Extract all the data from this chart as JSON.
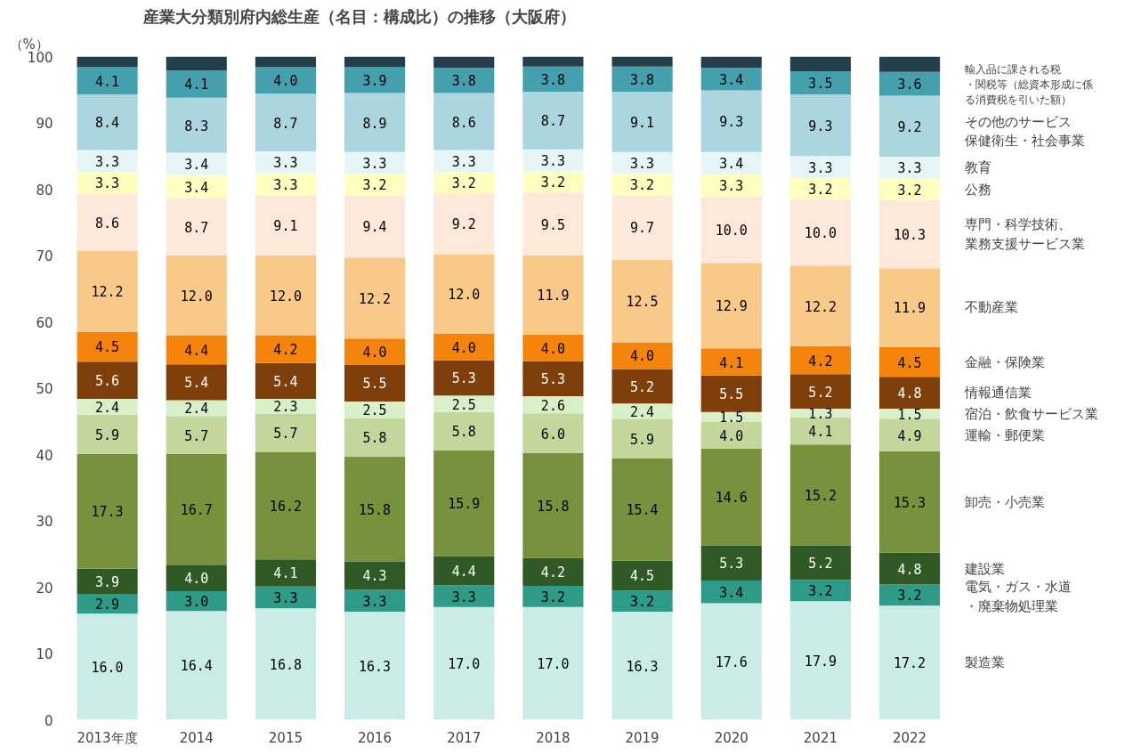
{
  "chart_data": {
    "type": "bar",
    "stacked": true,
    "title": "産業大分類別府内総生産（名目：構成比）の推移（大阪府）",
    "ylabel": "（%）",
    "categories": [
      "2013年度",
      "2014",
      "2015",
      "2016",
      "2017",
      "2018",
      "2019",
      "2020",
      "2021",
      "2022"
    ],
    "ylim": [
      0,
      100
    ],
    "yticks": [
      0,
      10,
      20,
      30,
      40,
      50,
      60,
      70,
      80,
      90,
      100
    ],
    "grid": false,
    "series": [
      {
        "name": "製造業",
        "color": "#c9ece6",
        "values": [
          16.0,
          16.4,
          16.8,
          16.3,
          17.0,
          17.0,
          16.3,
          17.6,
          17.9,
          17.2
        ],
        "value_labels": [
          "16.0",
          "16.4",
          "16.8",
          "16.3",
          "17.0",
          "17.0",
          "16.3",
          "17.6",
          "17.9",
          "17.2"
        ]
      },
      {
        "name": "電気・ガス・水道・廃棄物処理業",
        "color": "#2e9a88",
        "values": [
          2.9,
          3.0,
          3.3,
          3.3,
          3.3,
          3.2,
          3.2,
          3.4,
          3.2,
          3.2
        ],
        "value_labels": [
          "2.9",
          "3.0",
          "3.3",
          "3.3",
          "3.3",
          "3.2",
          "3.2",
          "3.4",
          "3.2",
          "3.2"
        ]
      },
      {
        "name": "建設業",
        "color": "#2f5a26",
        "values": [
          3.9,
          4.0,
          4.1,
          4.3,
          4.4,
          4.2,
          4.5,
          5.3,
          5.2,
          4.8
        ],
        "value_labels": [
          "3.9",
          "4.0",
          "4.1",
          "4.3",
          "4.4",
          "4.2",
          "4.5",
          "5.3",
          "5.2",
          "4.8"
        ]
      },
      {
        "name": "卸売・小売業",
        "color": "#76923c",
        "values": [
          17.3,
          16.7,
          16.2,
          15.8,
          15.9,
          15.8,
          15.4,
          14.6,
          15.2,
          15.3
        ],
        "value_labels": [
          "17.3",
          "16.7",
          "16.2",
          "15.8",
          "15.9",
          "15.8",
          "15.4",
          "14.6",
          "15.2",
          "15.3"
        ]
      },
      {
        "name": "運輸・郵便業",
        "color": "#c3d69b",
        "values": [
          5.9,
          5.7,
          5.7,
          5.8,
          5.8,
          6.0,
          5.9,
          4.0,
          4.1,
          4.9
        ],
        "value_labels": [
          "5.9",
          "5.7",
          "5.7",
          "5.8",
          "5.8",
          "6.0",
          "5.9",
          "4.0",
          "4.1",
          "4.9"
        ]
      },
      {
        "name": "宿泊・飲食サービス業",
        "color": "#d8f0c8",
        "values": [
          2.4,
          2.4,
          2.3,
          2.5,
          2.5,
          2.6,
          2.4,
          1.5,
          1.3,
          1.5
        ],
        "value_labels": [
          "2.4",
          "2.4",
          "2.3",
          "2.5",
          "2.5",
          "2.6",
          "2.4",
          "1.5",
          "1.3",
          "1.5"
        ]
      },
      {
        "name": "情報通信業",
        "color": "#7f3f0a",
        "values": [
          5.6,
          5.4,
          5.4,
          5.5,
          5.3,
          5.3,
          5.2,
          5.5,
          5.2,
          4.8
        ],
        "value_labels": [
          "5.6",
          "5.4",
          "5.4",
          "5.5",
          "5.3",
          "5.3",
          "5.2",
          "5.5",
          "5.2",
          "4.8"
        ]
      },
      {
        "name": "金融・保険業",
        "color": "#f4840c",
        "values": [
          4.5,
          4.4,
          4.2,
          4.0,
          4.0,
          4.0,
          4.0,
          4.1,
          4.2,
          4.5
        ],
        "value_labels": [
          "4.5",
          "4.4",
          "4.2",
          "4.0",
          "4.0",
          "4.0",
          "4.0",
          "4.1",
          "4.2",
          "4.5"
        ]
      },
      {
        "name": "不動産業",
        "color": "#f9c98a",
        "values": [
          12.2,
          12.0,
          12.0,
          12.2,
          12.0,
          11.9,
          12.5,
          12.9,
          12.2,
          11.9
        ],
        "value_labels": [
          "12.2",
          "12.0",
          "12.0",
          "12.2",
          "12.0",
          "11.9",
          "12.5",
          "12.9",
          "12.2",
          "11.9"
        ]
      },
      {
        "name": "専門・科学技術、業務支援サービス業",
        "color": "#fde8da",
        "values": [
          8.6,
          8.7,
          9.1,
          9.4,
          9.2,
          9.5,
          9.7,
          10.0,
          10.0,
          10.3
        ],
        "value_labels": [
          "8.6",
          "8.7",
          "9.1",
          "9.4",
          "9.2",
          "9.5",
          "9.7",
          "10.0",
          "10.0",
          "10.3"
        ]
      },
      {
        "name": "公務",
        "color": "#ffffc0",
        "values": [
          3.3,
          3.4,
          3.3,
          3.2,
          3.2,
          3.2,
          3.2,
          3.3,
          3.2,
          3.2
        ],
        "value_labels": [
          "3.3",
          "3.4",
          "3.3",
          "3.2",
          "3.2",
          "3.2",
          "3.2",
          "3.3",
          "3.2",
          "3.2"
        ]
      },
      {
        "name": "教育",
        "color": "#e6f5f8",
        "values": [
          3.3,
          3.4,
          3.3,
          3.3,
          3.3,
          3.3,
          3.3,
          3.4,
          3.3,
          3.3
        ],
        "value_labels": [
          "3.3",
          "3.4",
          "3.3",
          "3.3",
          "3.3",
          "3.3",
          "3.3",
          "3.4",
          "3.3",
          "3.3"
        ]
      },
      {
        "name": "保健衛生・社会事業",
        "color": "#acd6df",
        "values": [
          8.4,
          8.3,
          8.7,
          8.9,
          8.6,
          8.7,
          9.1,
          9.3,
          9.3,
          9.2
        ],
        "value_labels": [
          "8.4",
          "8.3",
          "8.7",
          "8.9",
          "8.6",
          "8.7",
          "9.1",
          "9.3",
          "9.3",
          "9.2"
        ]
      },
      {
        "name": "その他のサービス",
        "color": "#44a0ad",
        "values": [
          4.1,
          4.1,
          4.0,
          3.9,
          3.8,
          3.8,
          3.8,
          3.4,
          3.5,
          3.6
        ],
        "value_labels": [
          "4.1",
          "4.1",
          "4.0",
          "3.9",
          "3.8",
          "3.8",
          "3.8",
          "3.4",
          "3.5",
          "3.6"
        ]
      },
      {
        "name": "輸入品に課される税・関税等（総資本形成に係る消費税を引いた額）",
        "color": "#243e4c",
        "values": [
          1.6,
          2.1,
          1.6,
          1.6,
          1.7,
          1.5,
          1.5,
          1.7,
          2.2,
          2.3
        ]
      }
    ]
  }
}
